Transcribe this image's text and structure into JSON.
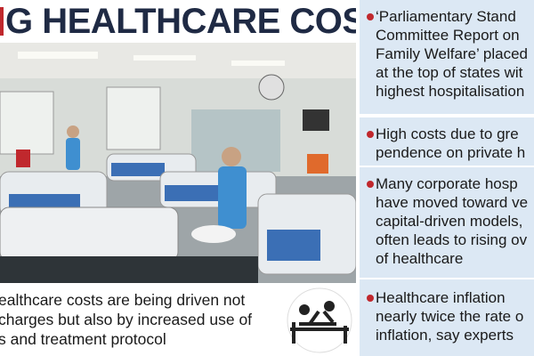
{
  "header": {
    "title": "G HEALTHCARE COSTS"
  },
  "caption": {
    "lines": [
      "ealthcare costs are being driven not",
      " charges but also by increased use of",
      "s and treatment protocol"
    ]
  },
  "points": [
    {
      "lines": [
        "‘Parliamentary Stand",
        "Committee Report on",
        "Family Welfare’ placed",
        "at the top of states wit",
        "highest hospitalisation"
      ]
    },
    {
      "lines": [
        "High costs due to gre",
        "pendence on private h"
      ]
    },
    {
      "lines": [
        "Many corporate hosp",
        "have moved toward ve",
        "capital-driven models,",
        "often leads to rising ov",
        "of healthcare"
      ]
    },
    {
      "lines": [
        "Healthcare inflation",
        "nearly twice the rate o",
        "inflation, say experts"
      ]
    }
  ]
}
